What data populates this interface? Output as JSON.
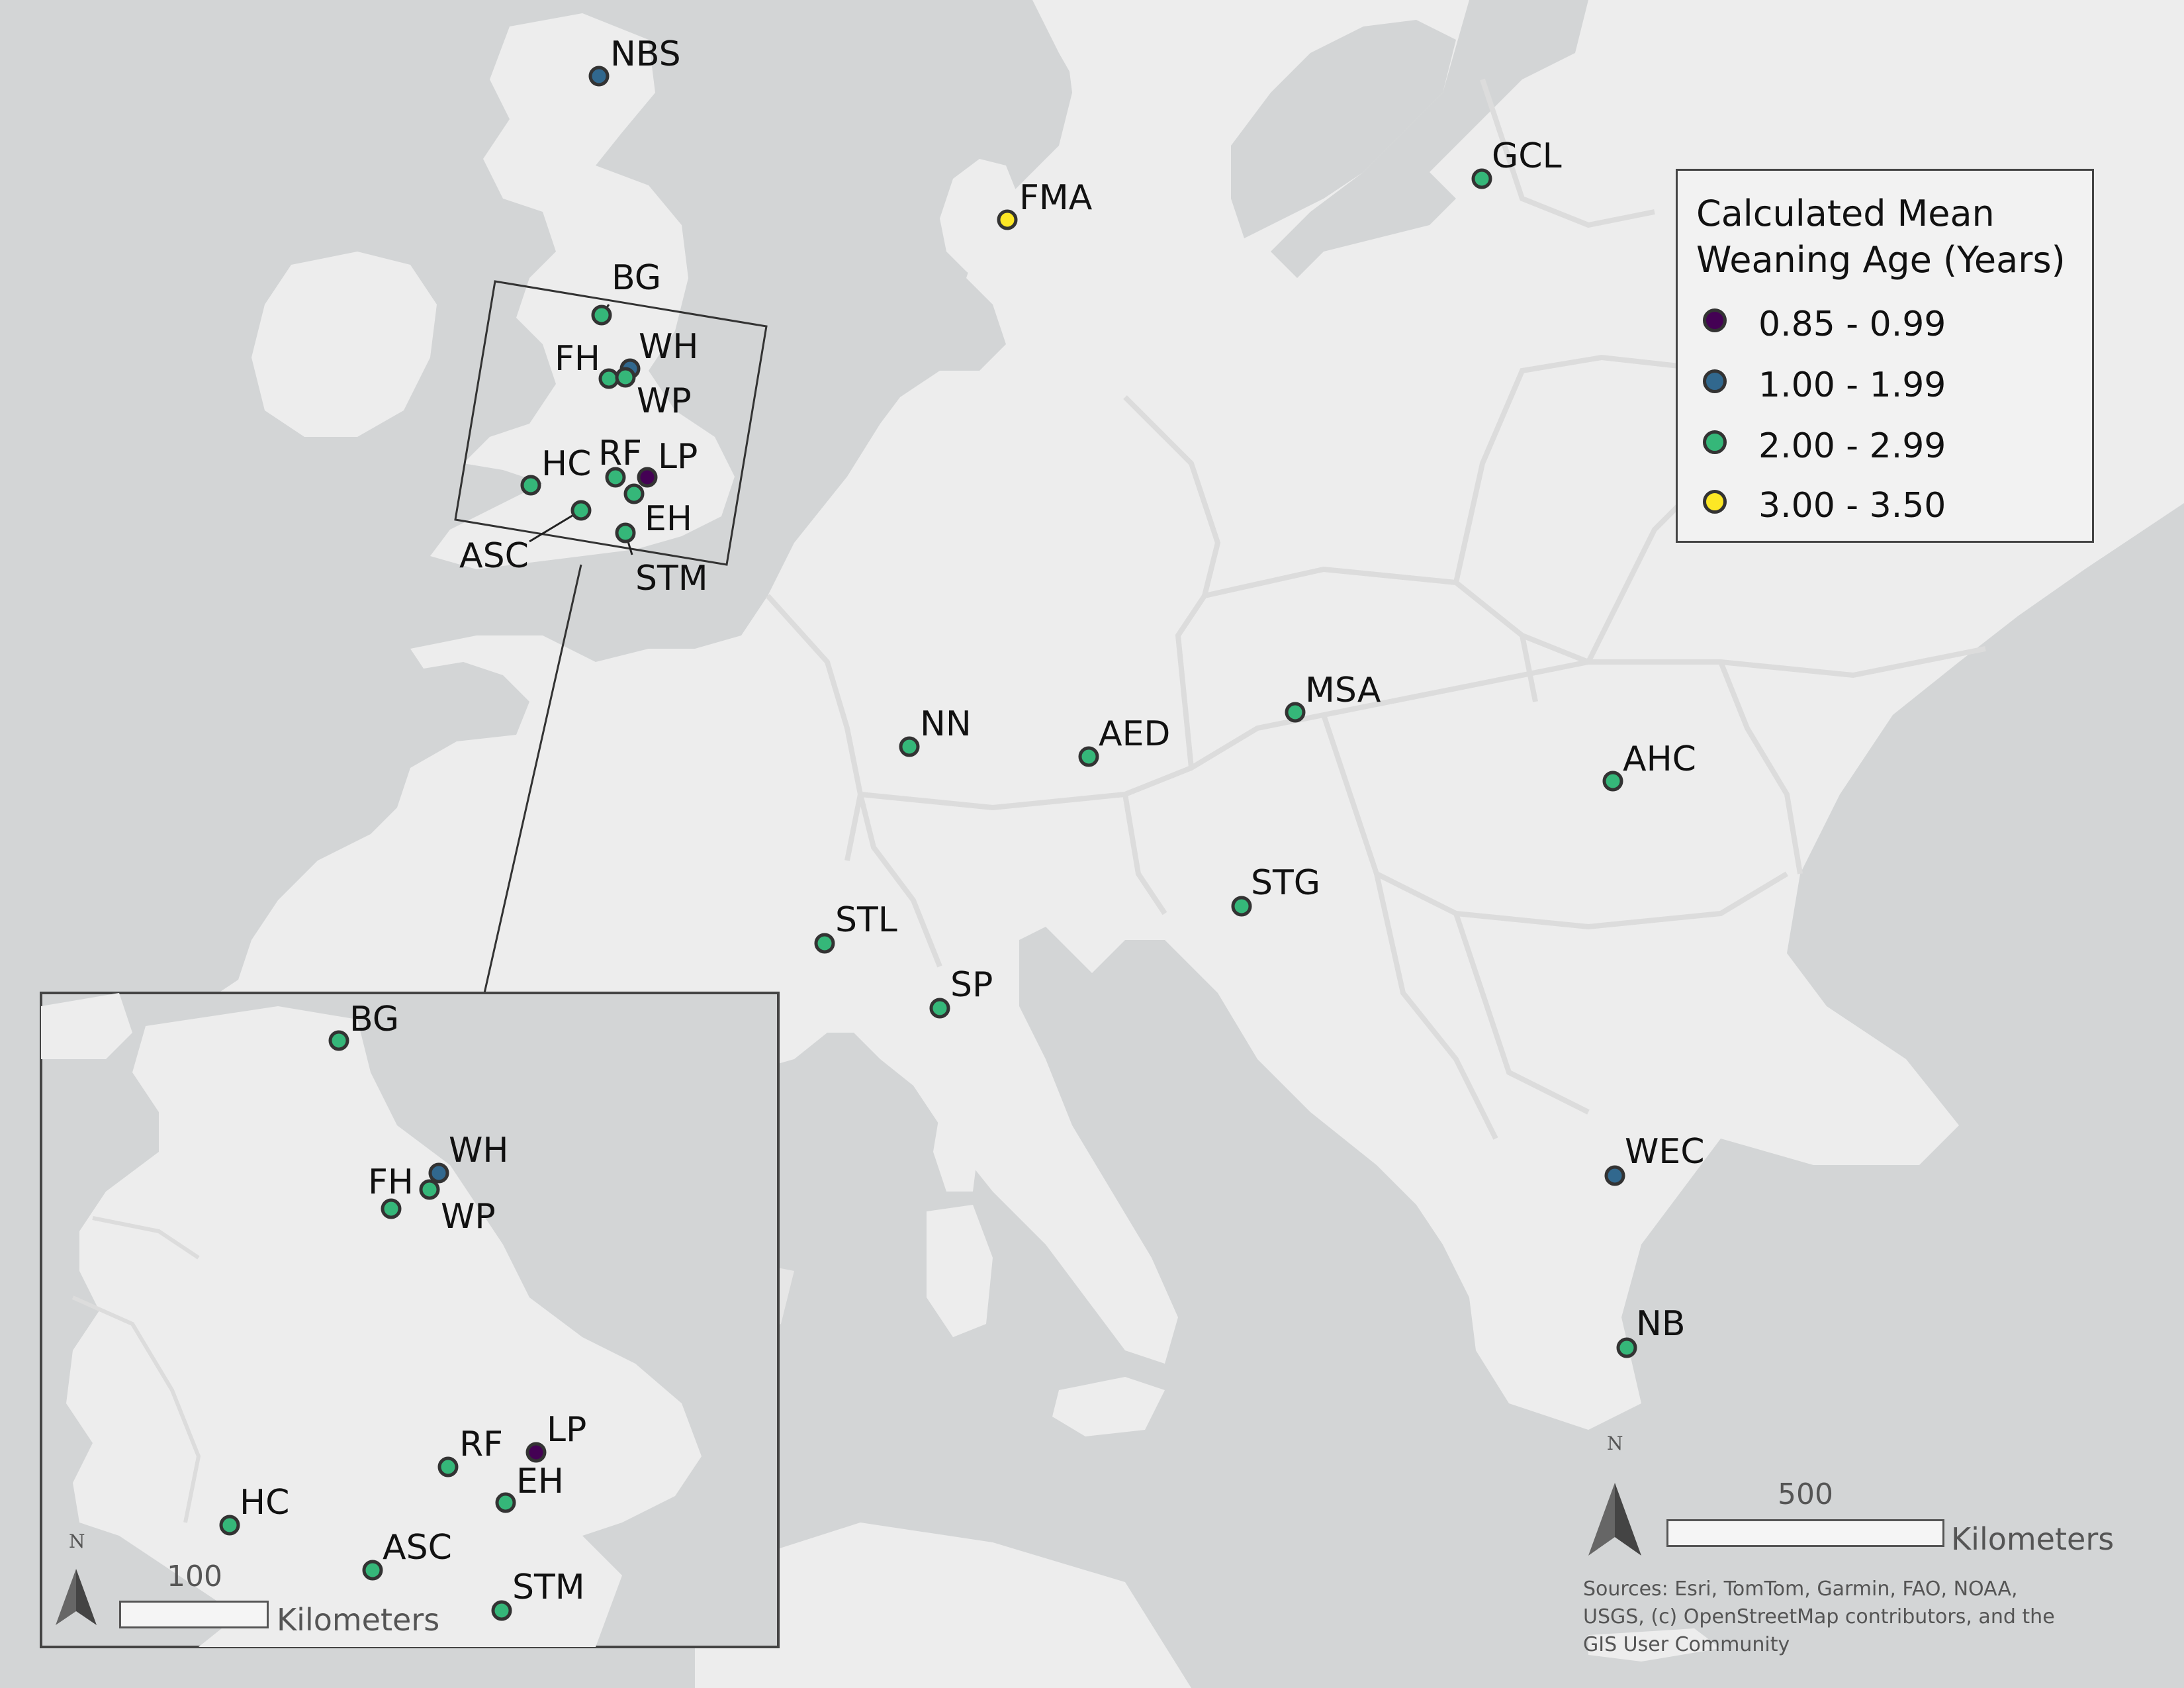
{
  "legend": {
    "title_line1": "Calculated Mean",
    "title_line2": "Weaning Age (Years)",
    "classes": [
      {
        "label": "0.85 - 0.99",
        "color": "#440154"
      },
      {
        "label": "1.00 - 1.99",
        "color": "#31688e"
      },
      {
        "label": "2.00 - 2.99",
        "color": "#35b779"
      },
      {
        "label": "3.00 - 3.50",
        "color": "#fde725"
      }
    ]
  },
  "sites": [
    {
      "label": "NBS",
      "class": 1
    },
    {
      "label": "GCL",
      "class": 2
    },
    {
      "label": "FMA",
      "class": 3
    },
    {
      "label": "BG",
      "class": 2
    },
    {
      "label": "WH",
      "class": 1
    },
    {
      "label": "FH",
      "class": 2
    },
    {
      "label": "WP",
      "class": 2
    },
    {
      "label": "HC",
      "class": 2
    },
    {
      "label": "RF",
      "class": 2
    },
    {
      "label": "LP",
      "class": 0
    },
    {
      "label": "ASC",
      "class": 2
    },
    {
      "label": "EH",
      "class": 2
    },
    {
      "label": "STM",
      "class": 2
    },
    {
      "label": "NN",
      "class": 2
    },
    {
      "label": "AED",
      "class": 2
    },
    {
      "label": "MSA",
      "class": 2
    },
    {
      "label": "AHC",
      "class": 2
    },
    {
      "label": "STG",
      "class": 2
    },
    {
      "label": "STL",
      "class": 2
    },
    {
      "label": "SP",
      "class": 2
    },
    {
      "label": "WEC",
      "class": 1
    },
    {
      "label": "NB",
      "class": 2
    }
  ],
  "inset_sites": [
    {
      "label": "BG",
      "class": 2
    },
    {
      "label": "WH",
      "class": 1
    },
    {
      "label": "FH",
      "class": 2
    },
    {
      "label": "WP",
      "class": 2
    },
    {
      "label": "RF",
      "class": 2
    },
    {
      "label": "LP",
      "class": 0
    },
    {
      "label": "EH",
      "class": 2
    },
    {
      "label": "HC",
      "class": 2
    },
    {
      "label": "ASC",
      "class": 2
    },
    {
      "label": "STM",
      "class": 2
    }
  ],
  "main_scale": {
    "value": "500",
    "unit": "Kilometers"
  },
  "inset_scale": {
    "value": "100",
    "unit": "Kilometers"
  },
  "north_label": "N",
  "sources_text": "Sources:  Esri, TomTom, Garmin, FAO, NOAA, USGS, (c) OpenStreetMap contributors, and the GIS User Community",
  "colors": {
    "sea": "#d3d5d6",
    "land": "#ededed",
    "border": "#dcdcdc"
  }
}
